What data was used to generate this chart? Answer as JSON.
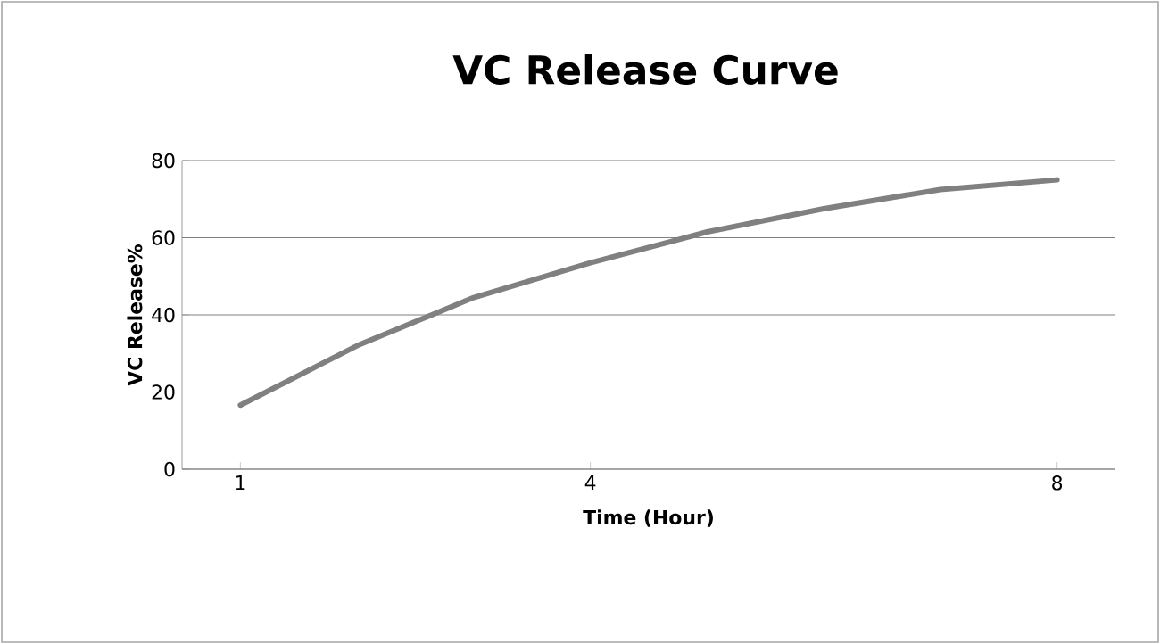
{
  "chart_data": {
    "type": "line",
    "title": "VC Release Curve",
    "xlabel": "Time (Hour)",
    "ylabel": "VC Release%",
    "x": [
      1,
      2,
      3,
      4,
      5,
      6,
      7,
      8
    ],
    "series": [
      {
        "color": "#808080",
        "values": [
          16.6,
          32,
          44.5,
          53.5,
          61.5,
          67.5,
          72.5,
          75
        ]
      }
    ],
    "xlim": [
      0.5,
      8.5
    ],
    "xticks": [
      1,
      4,
      8
    ],
    "ylim": [
      0,
      80
    ],
    "yticks": [
      0,
      20,
      40,
      60,
      80
    ],
    "grid": "y",
    "marker": "none",
    "line_style": "solid"
  }
}
